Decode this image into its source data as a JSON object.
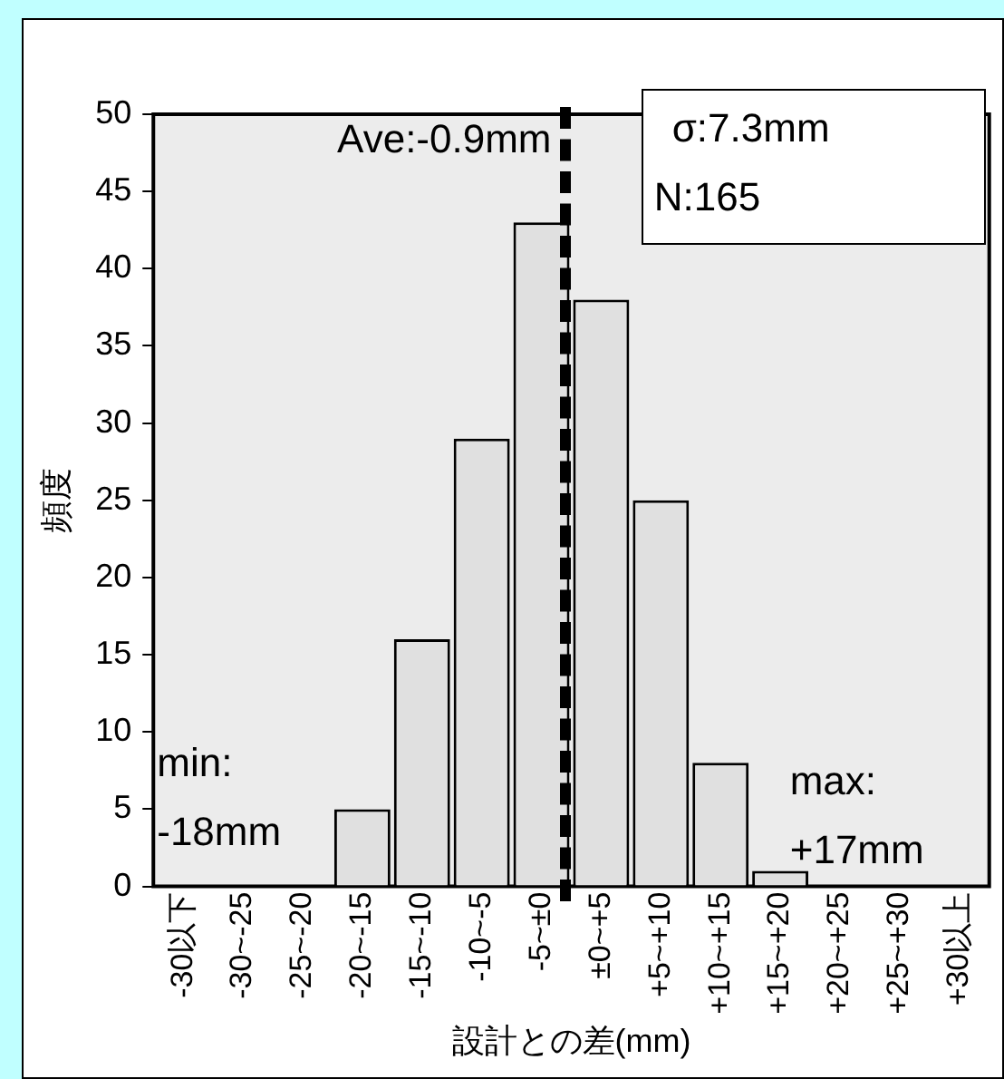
{
  "chart_data": {
    "type": "bar",
    "xlabel": "設計との差(mm)",
    "ylabel": "頻度",
    "categories": [
      "-30以下",
      "-30~-25",
      "-25~-20",
      "-20~-15",
      "-15~-10",
      "-10~-5",
      "-5~±0",
      "±0~+5",
      "+5~+10",
      "+10~+15",
      "+15~+20",
      "+20~+25",
      "+25~+30",
      "+30以上"
    ],
    "values": [
      0,
      0,
      0,
      5,
      16,
      29,
      43,
      38,
      25,
      8,
      1,
      0,
      0,
      0
    ],
    "color": "#e0e0e0",
    "ylim": [
      0,
      50
    ],
    "yticks": [
      0,
      5,
      10,
      15,
      20,
      25,
      30,
      35,
      40,
      45,
      50
    ],
    "grid": false,
    "legend": false,
    "annotations": [
      "Ave:-0.9mm",
      "σ:7.3mm",
      "N:165",
      "min:\n-18mm",
      "max:\n+17mm"
    ]
  }
}
